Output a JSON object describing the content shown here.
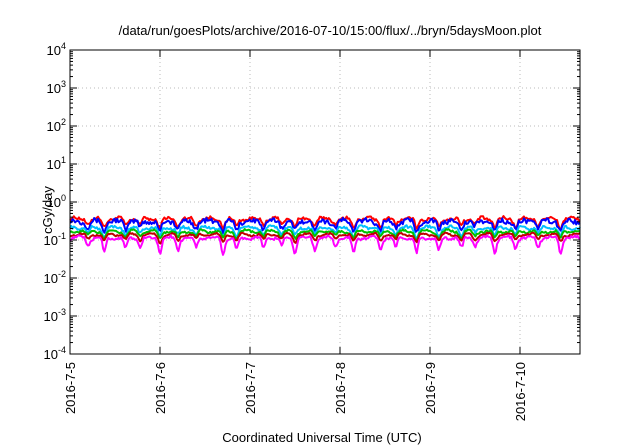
{
  "chart_data": {
    "type": "line",
    "title": "/data/run/goesPlots/archive/2016-07-10/15:00/flux/../bryn/5daysMoon.plot",
    "xlabel": "Coordinated Universal Time (UTC)",
    "ylabel": "cGy/day",
    "yscale": "log",
    "ylim": [
      0.0001,
      10000
    ],
    "xlim": [
      "2016-07-05 00:00",
      "2016-07-10 16:00"
    ],
    "grid": true,
    "legend": "none",
    "y_ticks": [
      {
        "base": "10",
        "exp": "-4"
      },
      {
        "base": "10",
        "exp": "-3"
      },
      {
        "base": "10",
        "exp": "-2"
      },
      {
        "base": "10",
        "exp": "-1"
      },
      {
        "base": "10",
        "exp": "0"
      },
      {
        "base": "10",
        "exp": "1"
      },
      {
        "base": "10",
        "exp": "2"
      },
      {
        "base": "10",
        "exp": "3"
      },
      {
        "base": "10",
        "exp": "4"
      }
    ],
    "x_ticks": [
      "2016-7-5",
      "2016-7-6",
      "2016-7-7",
      "2016-7-8",
      "2016-7-9",
      "2016-7-10"
    ],
    "series": [
      {
        "color": "#ff0000",
        "level": 0.36,
        "dip_depth": 0.45,
        "noise": 0.1
      },
      {
        "color": "#0000ff",
        "level": 0.31,
        "dip_depth": 0.5,
        "noise": 0.14
      },
      {
        "color": "#00bfff",
        "level": 0.21,
        "dip_depth": 0.45,
        "noise": 0.08
      },
      {
        "color": "#00c000",
        "level": 0.17,
        "dip_depth": 0.4,
        "noise": 0.06
      },
      {
        "color": "#c00000",
        "level": 0.14,
        "dip_depth": 0.4,
        "noise": 0.05
      },
      {
        "color": "#ff00ff",
        "level": 0.115,
        "dip_depth": 0.65,
        "noise": 0.08
      }
    ],
    "dip_days": [
      0.2,
      0.38,
      0.62,
      0.78,
      1.0,
      1.2,
      1.4,
      1.7,
      1.85,
      2.15,
      2.35,
      2.5,
      2.72,
      2.95,
      3.15,
      3.45,
      3.62,
      3.85,
      4.1,
      4.35,
      4.5,
      4.72,
      4.95,
      5.2,
      5.45
    ]
  }
}
